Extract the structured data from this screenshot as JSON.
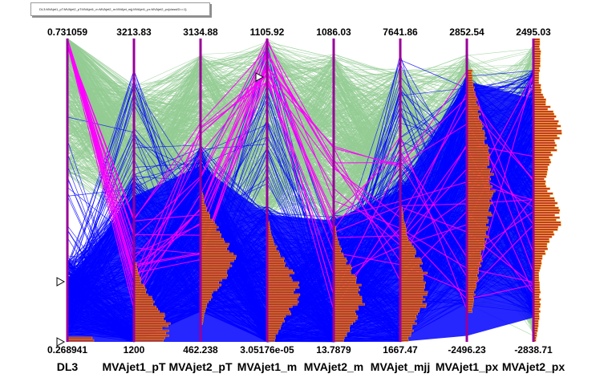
{
  "title": "DL3:MVAjet1_pT:MVAjet2_pT:MVAjet1_m:MVAjet2_m:MVAjet_mjj:MVAjet1_px:MVAjet2_px{classID==1}",
  "chart_data": {
    "type": "parallel-coordinates",
    "axes": [
      {
        "name": "DL3",
        "max_label": "0.731059",
        "min_label": "0.268941",
        "max": 0.731059,
        "min": 0.268941
      },
      {
        "name": "MVAjet1_pT",
        "max_label": "3213.83",
        "min_label": "1200",
        "max": 3213.83,
        "min": 1200
      },
      {
        "name": "MVAjet2_pT",
        "max_label": "3134.88",
        "min_label": "462.238",
        "max": 3134.88,
        "min": 462.238
      },
      {
        "name": "MVAjet1_m",
        "max_label": "1105.92",
        "min_label": "3.05176e-05",
        "max": 1105.92,
        "min": 3.05176e-05
      },
      {
        "name": "MVAjet2_m",
        "max_label": "1086.03",
        "min_label": "13.7879",
        "max": 1086.03,
        "min": 13.7879
      },
      {
        "name": "MVAjet_mjj",
        "max_label": "7641.86",
        "min_label": "1667.47",
        "max": 7641.86,
        "min": 1667.47
      },
      {
        "name": "MVAjet1_px",
        "max_label": "2852.54",
        "min_label": "-2496.23",
        "max": 2852.54,
        "min": -2496.23
      },
      {
        "name": "MVAjet2_px",
        "max_label": "2495.03",
        "min_label": "-2838.71",
        "max": 2495.03,
        "min": -2838.71
      }
    ],
    "colors": {
      "background_lines": "#94cc94",
      "selected_lines": "#0000ff",
      "highlight_lines": "#ff00ff",
      "axis": "#990099",
      "histogram_fill": "#b5332e",
      "histogram_edge": "#ff9900"
    }
  }
}
